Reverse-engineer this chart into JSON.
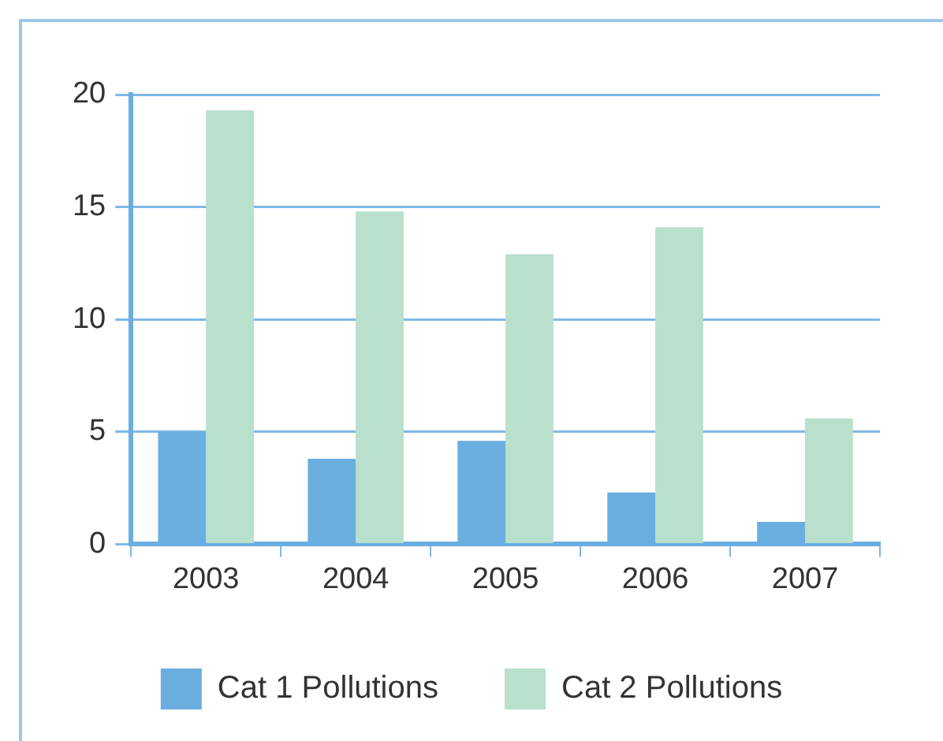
{
  "chart_data": {
    "type": "bar",
    "categories": [
      "2003",
      "2004",
      "2005",
      "2006",
      "2007"
    ],
    "series": [
      {
        "name": "Cat 1 Pollutions",
        "color": "#6aaee0",
        "values": [
          5.0,
          3.8,
          4.6,
          2.3,
          1.0
        ]
      },
      {
        "name": "Cat 2 Pollutions",
        "color": "#b8e0cc",
        "values": [
          19.3,
          14.8,
          12.9,
          14.1,
          5.6
        ]
      }
    ],
    "ylim": [
      0,
      20
    ],
    "yticks": [
      0,
      5,
      10,
      15,
      20
    ],
    "grid": "y",
    "legend": "bottom"
  }
}
